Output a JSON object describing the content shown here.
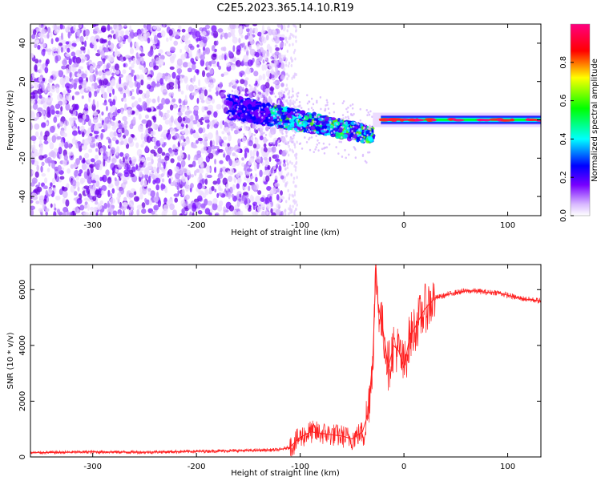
{
  "figure": {
    "title": "C2E5.2023.365.14.10.R19"
  },
  "chart_data": [
    {
      "type": "heatmap",
      "xlabel": "Height of straight line (km)",
      "ylabel": "Frequency (Hz)",
      "xlim": [
        -360,
        132
      ],
      "ylim": [
        -50,
        50
      ],
      "x_ticks": [
        -300,
        -200,
        -100,
        0,
        100
      ],
      "y_ticks": [
        -40,
        -20,
        0,
        20,
        40
      ],
      "grid": false,
      "colorbar": {
        "label": "Normalized spectral amplitude",
        "range": [
          0,
          1
        ],
        "ticks": [
          0.0,
          0.2,
          0.4,
          0.6,
          0.8
        ],
        "tick_labels": [
          "0.0",
          "0.2",
          "0.4",
          "0.6",
          "0.8"
        ],
        "colormap": [
          "#ffffff",
          "#d8b8ff",
          "#7700ff",
          "#0000ff",
          "#00ffff",
          "#00ff00",
          "#ffff00",
          "#ff0000",
          "#ff0080"
        ]
      },
      "regions": [
        {
          "name": "broadband noise",
          "x_range": [
            -360,
            -115
          ],
          "f_range": [
            -50,
            50
          ],
          "amplitude": 0.15
        },
        {
          "name": "spreading trace",
          "x_range": [
            -170,
            -30
          ],
          "f_center": [
            7,
            -8
          ],
          "amplitude": 0.4
        },
        {
          "name": "carrier line",
          "x_range": [
            -30,
            132
          ],
          "f_center": 0,
          "amplitude": 0.9
        }
      ]
    },
    {
      "type": "line",
      "xlabel": "Height of straight line (km)",
      "ylabel": "SNR (10 * v/v)",
      "xlim": [
        -360,
        132
      ],
      "ylim": [
        0,
        6900
      ],
      "x_ticks": [
        -300,
        -200,
        -100,
        0,
        100
      ],
      "y_ticks": [
        0,
        2000,
        4000,
        6000
      ],
      "grid": false,
      "series": [
        {
          "color": "#ff2020",
          "x": [
            -360,
            -300,
            -250,
            -200,
            -150,
            -120,
            -110,
            -100,
            -90,
            -80,
            -70,
            -60,
            -50,
            -40,
            -35,
            -30,
            -27,
            -25,
            -20,
            -15,
            -10,
            -5,
            0,
            5,
            10,
            20,
            30,
            40,
            50,
            60,
            70,
            80,
            90,
            100,
            110,
            120,
            132
          ],
          "y": [
            150,
            180,
            170,
            200,
            230,
            260,
            350,
            700,
            900,
            850,
            800,
            750,
            650,
            900,
            1500,
            3500,
            6800,
            5500,
            4500,
            3200,
            4000,
            3800,
            3200,
            4200,
            4600,
            5300,
            5700,
            5800,
            5900,
            5950,
            5950,
            5900,
            5900,
            5800,
            5700,
            5650,
            5600
          ]
        }
      ]
    }
  ]
}
